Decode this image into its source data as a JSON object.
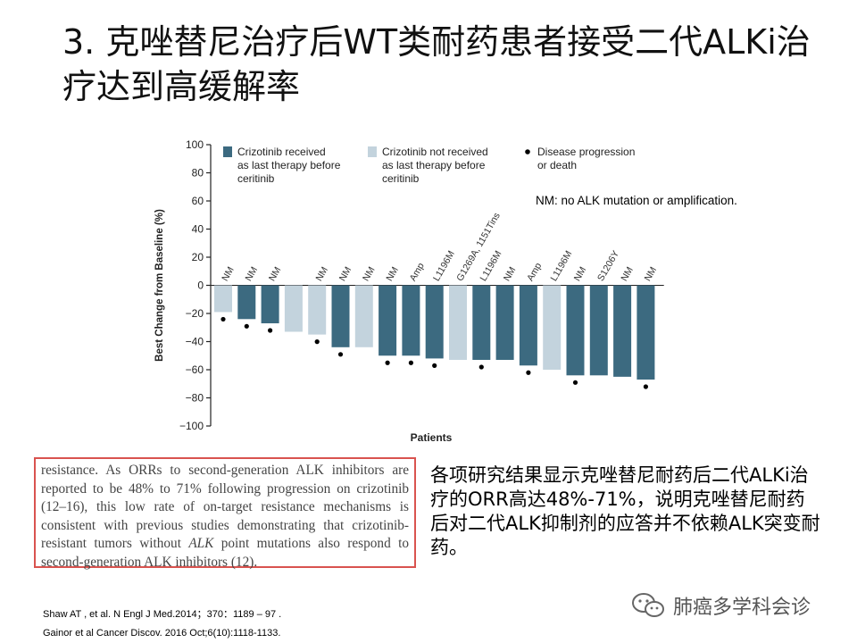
{
  "slide": {
    "title": "3. 克唑替尼治疗后WT类耐药患者接受二代ALKi治疗达到高缓解率",
    "note": "NM: no ALK mutation or amplification.",
    "quote": {
      "p1": "resistance. As ORRs to second-generation ALK inhibitors are reported to be 48% to 71% following progression on crizotinib (12–16), this low rate of on-target resistance mechanisms is consistent with previous studies demonstrating that crizotinib-resistant tumors without ",
      "em": "ALK",
      "p2": " point mutations also respond to second-generation ALK inhibitors (12)."
    },
    "summary": "各项研究结果显示克唑替尼耐药后二代ALKi治疗的ORR高达48%-71%，说明克唑替尼耐药后对二代ALK抑制剂的应答并不依赖ALK突变耐药。",
    "refs": [
      "Shaw AT , et al. N Engl J Med.2014；370：1189 – 97 .",
      "Gainor et al Cancer Discov. 2016 Oct;6(10):1118-1133."
    ],
    "logo_text": "肺癌多学科会诊"
  },
  "chart_data": {
    "type": "bar",
    "ylabel": "Best Change from Baseline (%)",
    "xlabel": "Patients",
    "ylim": [
      -100,
      100
    ],
    "yticks": [
      100,
      80,
      60,
      40,
      20,
      0,
      -20,
      -40,
      -60,
      -80,
      -100
    ],
    "grid": false,
    "legend_position": "top",
    "legend": [
      {
        "key": "received",
        "label_lines": [
          "Crizotinib received",
          "as last therapy before",
          "ceritinib"
        ]
      },
      {
        "key": "not_received",
        "label_lines": [
          "Crizotinib not received",
          "as last therapy before",
          "ceritinib"
        ]
      },
      {
        "key": "progression",
        "label_lines": [
          "Disease progression",
          "or death"
        ]
      }
    ],
    "colors": {
      "received": "#3c6a80",
      "not_received": "#c3d3dd",
      "marker": "#000000"
    },
    "bars": [
      {
        "value": -19,
        "group": "not_received",
        "label": "NM",
        "progression": true
      },
      {
        "value": -24,
        "group": "received",
        "label": "NM",
        "progression": true
      },
      {
        "value": -27,
        "group": "received",
        "label": "NM",
        "progression": true
      },
      {
        "value": -33,
        "group": "not_received",
        "label": "",
        "progression": false
      },
      {
        "value": -35,
        "group": "not_received",
        "label": "NM",
        "progression": true
      },
      {
        "value": -44,
        "group": "received",
        "label": "NM",
        "progression": true
      },
      {
        "value": -44,
        "group": "not_received",
        "label": "NM",
        "progression": false
      },
      {
        "value": -50,
        "group": "received",
        "label": "NM",
        "progression": true
      },
      {
        "value": -50,
        "group": "received",
        "label": "Amp",
        "progression": true
      },
      {
        "value": -52,
        "group": "received",
        "label": "L1196M",
        "progression": true
      },
      {
        "value": -53,
        "group": "not_received",
        "label": "G1269A, 1151Tins",
        "progression": false
      },
      {
        "value": -53,
        "group": "received",
        "label": "L1196M",
        "progression": true
      },
      {
        "value": -53,
        "group": "received",
        "label": "NM",
        "progression": false
      },
      {
        "value": -57,
        "group": "received",
        "label": "Amp",
        "progression": true
      },
      {
        "value": -60,
        "group": "not_received",
        "label": "L1196M",
        "progression": false
      },
      {
        "value": -64,
        "group": "received",
        "label": "NM",
        "progression": true
      },
      {
        "value": -64,
        "group": "received",
        "label": "S1206Y",
        "progression": false
      },
      {
        "value": -65,
        "group": "received",
        "label": "NM",
        "progression": false
      },
      {
        "value": -67,
        "group": "received",
        "label": "NM",
        "progression": true
      }
    ]
  }
}
